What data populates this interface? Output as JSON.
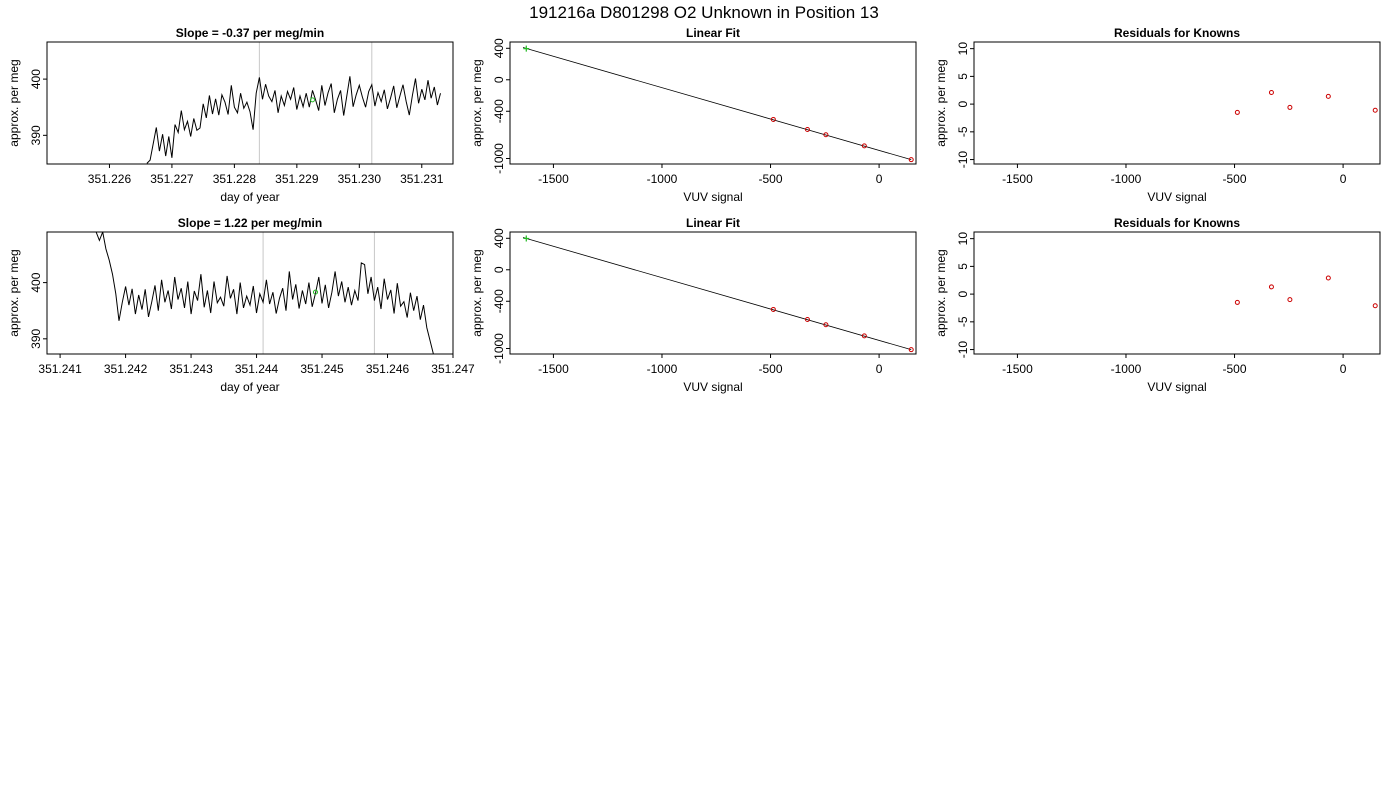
{
  "figure": {
    "title": "191216a      D801298   O2 Unknown in Position  13"
  },
  "colors": {
    "trace": "#000000",
    "gridline": "#c8c8c8",
    "known_point": "#cc0000",
    "unknown_point": "#22bb22",
    "fit_line": "#000000"
  },
  "chart_data": [
    {
      "id": "row1-timeseries",
      "type": "line",
      "title": "Slope =  -0.37  per meg/min",
      "xlabel": "day of year",
      "ylabel": "approx. per meg",
      "xlim": [
        351.225,
        351.2315
      ],
      "ylim": [
        384.9,
        406.6
      ],
      "xticks": [
        351.226,
        351.227,
        351.228,
        351.229,
        351.23,
        351.231
      ],
      "xtick_labels": [
        "351.226",
        "351.227",
        "351.228",
        "351.229",
        "351.230",
        "351.231"
      ],
      "yticks": [
        390,
        400
      ],
      "ytick_labels": [
        "390",
        "400"
      ],
      "vlines": [
        351.2284,
        351.2302
      ],
      "series": [
        {
          "x": [
            351.2266,
            351.22665,
            351.22675,
            351.2268,
            351.22685,
            351.2269,
            351.22695,
            351.227,
            351.22705,
            351.2271,
            351.22715,
            351.2272,
            351.22725,
            351.2273,
            351.22735,
            351.2274,
            351.22745,
            351.2275,
            351.22755,
            351.2276,
            351.22765,
            351.2277,
            351.22775,
            351.2278,
            351.22785,
            351.2279,
            351.22795,
            351.228,
            351.22805,
            351.2281,
            351.22815,
            351.2282,
            351.22825,
            351.2283,
            351.22835,
            351.2284,
            351.22845,
            351.2285,
            351.22855,
            351.2286,
            351.22865,
            351.2287,
            351.22875,
            351.2288,
            351.22885,
            351.2289,
            351.22895,
            351.229,
            351.22905,
            351.2291,
            351.22915,
            351.2292,
            351.22925,
            351.2293,
            351.22935,
            351.2294,
            351.22945,
            351.2295,
            351.22955,
            351.2296,
            351.22965,
            351.2297,
            351.22975,
            351.2298,
            351.22985,
            351.2299,
            351.22995,
            351.23,
            351.23005,
            351.2301,
            351.23015,
            351.2302,
            351.23025,
            351.2303,
            351.23035,
            351.2304,
            351.23045,
            351.2305,
            351.23055,
            351.2306,
            351.23065,
            351.2307,
            351.23075,
            351.2308,
            351.23085,
            351.2309,
            351.23095,
            351.231,
            351.23105,
            351.2311,
            351.23115,
            351.2312,
            351.23125,
            351.2313
          ],
          "y": [
            385.0,
            385.6,
            391.4,
            387.2,
            390.2,
            386.3,
            389.8,
            386.0,
            391.9,
            390.5,
            394.4,
            391.0,
            392.5,
            389.8,
            393.0,
            390.9,
            391.3,
            395.6,
            393.1,
            397.1,
            393.8,
            396.5,
            393.6,
            397.2,
            395.9,
            393.7,
            398.9,
            395.0,
            394.0,
            397.5,
            394.8,
            395.9,
            394.2,
            391.0,
            397.5,
            400.3,
            396.4,
            399.1,
            397.0,
            396.0,
            398.0,
            394.0,
            397.0,
            395.3,
            397.8,
            396.4,
            398.5,
            394.6,
            397.0,
            395.1,
            397.5,
            395.0,
            398.0,
            396.3,
            394.4,
            398.9,
            395.3,
            397.6,
            399.2,
            394.0,
            396.4,
            398.0,
            393.5,
            397.0,
            400.5,
            395.1,
            397.2,
            398.9,
            396.8,
            395.0,
            397.8,
            399.0,
            395.2,
            397.6,
            396.0,
            398.1,
            394.7,
            396.6,
            398.8,
            394.9,
            397.0,
            399.0,
            396.0,
            393.6,
            397.1,
            400.1,
            395.7,
            398.2,
            396.3,
            399.8,
            396.6,
            398.6,
            395.4,
            397.5
          ]
        }
      ],
      "unknown_marker": {
        "x": 351.22925,
        "y": 396.3
      }
    },
    {
      "id": "row1-linearfit",
      "type": "scatter",
      "title": "Linear Fit",
      "xlabel": "VUV signal",
      "ylabel": "approx. per meg",
      "xlim": [
        -1700,
        170
      ],
      "ylim": [
        -1070,
        480
      ],
      "xticks": [
        -1500,
        -1000,
        -500,
        0
      ],
      "xtick_labels": [
        "-1500",
        "-1000",
        "-500",
        "0"
      ],
      "yticks": [
        400,
        0,
        -400,
        -1000
      ],
      "ytick_labels": [
        "400",
        "0",
        "-400",
        "-1000"
      ],
      "fit_line": {
        "x": [
          -1640,
          148
        ],
        "y": [
          410,
          -1015
        ]
      },
      "knowns": {
        "x": [
          -487,
          -330,
          -245,
          -68,
          148
        ],
        "y": [
          -504,
          -632,
          -698,
          -840,
          -1015
        ]
      },
      "unknowns": {
        "x": [
          -1625
        ],
        "y": [
          396
        ]
      }
    },
    {
      "id": "row1-residuals",
      "type": "scatter",
      "title": "Residuals for Knowns",
      "xlabel": "VUV signal",
      "ylabel": "approx. per meg",
      "xlim": [
        -1700,
        170
      ],
      "ylim": [
        -10.8,
        11.2
      ],
      "xticks": [
        -1500,
        -1000,
        -500,
        0
      ],
      "xtick_labels": [
        "-1500",
        "-1000",
        "-500",
        "0"
      ],
      "yticks": [
        10,
        5,
        0,
        -5,
        -10
      ],
      "ytick_labels": [
        "10",
        "5",
        "0",
        "-5",
        "-10"
      ],
      "knowns": {
        "x": [
          -487,
          -330,
          -245,
          -68,
          148
        ],
        "y": [
          -1.5,
          2.1,
          -0.6,
          1.4,
          -1.1
        ]
      }
    },
    {
      "id": "row2-timeseries",
      "type": "line",
      "title": "Slope =  1.22  per meg/min",
      "xlabel": "day of year",
      "ylabel": "approx. per meg",
      "xlim": [
        351.2408,
        351.247
      ],
      "ylim": [
        387.3,
        409.0
      ],
      "xticks": [
        351.241,
        351.242,
        351.243,
        351.244,
        351.245,
        351.246,
        351.247
      ],
      "xtick_labels": [
        "351.241",
        "351.242",
        "351.243",
        "351.244",
        "351.245",
        "351.246",
        "351.247"
      ],
      "yticks": [
        390,
        400
      ],
      "ytick_labels": [
        "390",
        "400"
      ],
      "vlines": [
        351.2441,
        351.2458
      ],
      "series": [
        {
          "x": [
            351.24155,
            351.2416,
            351.24165,
            351.2417,
            351.24175,
            351.2418,
            351.24185,
            351.2419,
            351.24195,
            351.242,
            351.24205,
            351.2421,
            351.24215,
            351.2422,
            351.24225,
            351.2423,
            351.24235,
            351.2424,
            351.24245,
            351.2425,
            351.24255,
            351.2426,
            351.24265,
            351.2427,
            351.24275,
            351.2428,
            351.24285,
            351.2429,
            351.24295,
            351.243,
            351.24305,
            351.2431,
            351.24315,
            351.2432,
            351.24325,
            351.2433,
            351.24335,
            351.2434,
            351.24345,
            351.2435,
            351.24355,
            351.2436,
            351.24365,
            351.2437,
            351.24375,
            351.2438,
            351.24385,
            351.2439,
            351.24395,
            351.244,
            351.24405,
            351.2441,
            351.24415,
            351.2442,
            351.24425,
            351.2443,
            351.24435,
            351.2444,
            351.24445,
            351.2445,
            351.24455,
            351.2446,
            351.24465,
            351.2447,
            351.24475,
            351.2448,
            351.24485,
            351.2449,
            351.24495,
            351.245,
            351.24505,
            351.2451,
            351.24515,
            351.2452,
            351.24525,
            351.2453,
            351.24535,
            351.2454,
            351.24545,
            351.2455,
            351.24555,
            351.2456,
            351.24565,
            351.2457,
            351.24575,
            351.2458,
            351.24585,
            351.2459,
            351.24595,
            351.246,
            351.24605,
            351.2461,
            351.24615,
            351.2462,
            351.24625,
            351.2463,
            351.24635,
            351.2464,
            351.24645,
            351.2465,
            351.24655,
            351.2466,
            351.2467
          ],
          "y": [
            409.0,
            407.5,
            409.0,
            406.0,
            404.0,
            401.5,
            398.0,
            393.2,
            396.5,
            399.3,
            396.0,
            398.9,
            394.4,
            397.8,
            395.2,
            398.8,
            393.9,
            396.6,
            399.5,
            395.0,
            400.5,
            396.5,
            398.6,
            395.3,
            401.0,
            397.0,
            399.0,
            395.5,
            400.2,
            394.4,
            398.5,
            396.8,
            401.5,
            395.6,
            398.6,
            394.6,
            400.2,
            396.4,
            397.4,
            395.8,
            401.2,
            397.2,
            398.8,
            394.4,
            400.0,
            395.5,
            397.6,
            396.0,
            399.4,
            394.6,
            398.0,
            396.5,
            400.5,
            396.2,
            398.3,
            394.5,
            397.2,
            399.0,
            395.0,
            402.0,
            397.0,
            399.7,
            395.4,
            398.6,
            396.2,
            400.0,
            395.7,
            398.1,
            401.0,
            396.3,
            399.6,
            395.5,
            398.3,
            402.0,
            397.6,
            400.2,
            396.5,
            399.2,
            396.0,
            398.6,
            396.8,
            403.5,
            403.2,
            398.0,
            401.0,
            396.8,
            399.2,
            395.3,
            400.7,
            397.0,
            398.7,
            394.5,
            399.9,
            395.8,
            396.6,
            393.8,
            398.2,
            395.0,
            397.6,
            393.4,
            396.0,
            392.0,
            387.3
          ]
        }
      ],
      "unknown_marker": {
        "x": 351.2449,
        "y": 398.3
      }
    },
    {
      "id": "row2-linearfit",
      "type": "scatter",
      "title": "Linear Fit",
      "xlabel": "VUV signal",
      "ylabel": "approx. per meg",
      "xlim": [
        -1700,
        170
      ],
      "ylim": [
        -1070,
        480
      ],
      "xticks": [
        -1500,
        -1000,
        -500,
        0
      ],
      "xtick_labels": [
        "-1500",
        "-1000",
        "-500",
        "0"
      ],
      "yticks": [
        400,
        0,
        -400,
        -1000
      ],
      "ytick_labels": [
        "400",
        "0",
        "-400",
        "-1000"
      ],
      "fit_line": {
        "x": [
          -1640,
          148
        ],
        "y": [
          410,
          -1015
        ]
      },
      "knowns": {
        "x": [
          -487,
          -330,
          -245,
          -68,
          148
        ],
        "y": [
          -504,
          -632,
          -698,
          -840,
          -1015
        ]
      },
      "unknowns": {
        "x": [
          -1625
        ],
        "y": [
          398
        ]
      }
    },
    {
      "id": "row2-residuals",
      "type": "scatter",
      "title": "Residuals for Knowns",
      "xlabel": "VUV signal",
      "ylabel": "approx. per meg",
      "xlim": [
        -1700,
        170
      ],
      "ylim": [
        -10.8,
        11.2
      ],
      "xticks": [
        -1500,
        -1000,
        -500,
        0
      ],
      "xtick_labels": [
        "-1500",
        "-1000",
        "-500",
        "0"
      ],
      "yticks": [
        10,
        5,
        0,
        -5,
        -10
      ],
      "ytick_labels": [
        "10",
        "5",
        "0",
        "-5",
        "-10"
      ],
      "knowns": {
        "x": [
          -487,
          -330,
          -245,
          -68,
          148
        ],
        "y": [
          -1.5,
          1.3,
          -1.0,
          2.9,
          -2.1
        ]
      }
    }
  ]
}
